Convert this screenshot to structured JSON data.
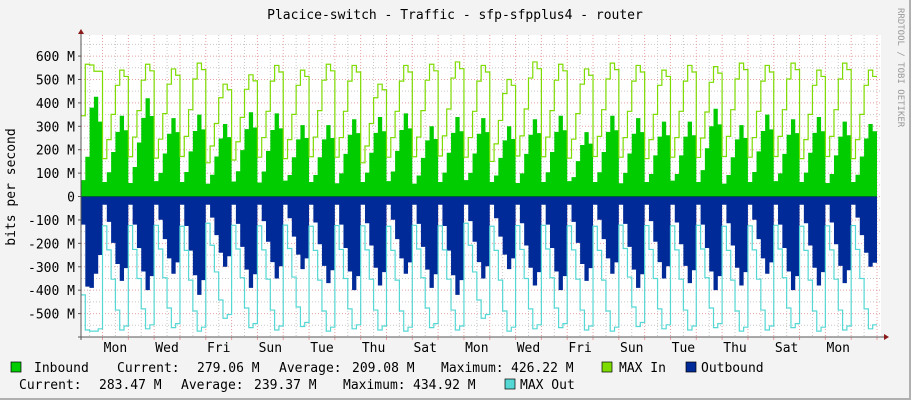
{
  "title": "Placice-switch - Traffic - sfp-sfpplus4 - router",
  "watermark": "RRDTOOL / TOBI OETIKER",
  "colors": {
    "inbound": "#00cc00",
    "max_in": "#7ddb00",
    "outbound": "#002a97",
    "max_out": "#55d8d4",
    "grid_major": "#e8a0a0",
    "grid_minor": "#c8c8c8",
    "background": "#f3f3f3",
    "plot_background": "#ffffff"
  },
  "legend": {
    "inbound": {
      "label": "Inbound",
      "current_label": "Current:",
      "current": "279.06 M",
      "average_label": "Average:",
      "average": "209.08 M",
      "maximum_label": "Maximum:",
      "maximum": "426.22 M"
    },
    "max_in": {
      "label": "MAX In"
    },
    "outbound": {
      "label": "Outbound",
      "current_label": "Current:",
      "current": "283.47 M",
      "average_label": "Average:",
      "average": "239.37 M",
      "maximum_label": "Maximum:",
      "maximum": "434.92 M"
    },
    "max_out": {
      "label": "MAX Out"
    }
  },
  "chart_data": {
    "type": "area",
    "title": "Placice-switch - Traffic - sfp-sfpplus4 - router",
    "xlabel": "",
    "ylabel": "bits per second",
    "ylim": [
      -600,
      690
    ],
    "y_unit": "M",
    "yticks": [
      -500,
      -400,
      -300,
      -200,
      -100,
      0,
      100,
      200,
      300,
      400,
      500,
      600
    ],
    "ytick_labels": [
      "-500 M",
      "-400 M",
      "-300 M",
      "-200 M",
      "-100 M",
      "0",
      "100 M",
      "200 M",
      "300 M",
      "400 M",
      "500 M",
      "600 M"
    ],
    "x_resolution": "4 hours",
    "xtick_labels": [
      "Mon",
      "Wed",
      "Fri",
      "Sun",
      "Tue",
      "Thu",
      "Sat",
      "Mon",
      "Wed",
      "Fri",
      "Sun",
      "Tue",
      "Thu",
      "Sat",
      "Mon"
    ],
    "grid": true,
    "legend_position": "bottom",
    "series": [
      {
        "name": "Inbound",
        "style": "area",
        "values": [
          70,
          170,
          380,
          426,
          320,
          62,
          104,
          190,
          276,
          345,
          283,
          58,
          126,
          231,
          336,
          420,
          344,
          66,
          101,
          184,
          268,
          335,
          275,
          62,
          105,
          193,
          280,
          350,
          287,
          55,
          93,
          171,
          248,
          310,
          254,
          64,
          108,
          198,
          288,
          360,
          295,
          60,
          107,
          195,
          284,
          355,
          291,
          68,
          92,
          168,
          244,
          305,
          250,
          62,
          92,
          168,
          244,
          305,
          250,
          57,
          99,
          182,
          264,
          330,
          271,
          62,
          102,
          187,
          272,
          340,
          279,
          66,
          107,
          195,
          284,
          355,
          291,
          55,
          90,
          165,
          240,
          300,
          246,
          62,
          102,
          187,
          272,
          340,
          279,
          70,
          101,
          184,
          268,
          335,
          275,
          62,
          90,
          165,
          240,
          300,
          246,
          58,
          99,
          182,
          264,
          330,
          271,
          62,
          104,
          190,
          276,
          345,
          283,
          66,
          83,
          151,
          220,
          275,
          226,
          62,
          104,
          190,
          276,
          345,
          283,
          57,
          101,
          184,
          268,
          335,
          275,
          62,
          96,
          176,
          256,
          320,
          262,
          68,
          96,
          176,
          256,
          320,
          262,
          62,
          113,
          206,
          300,
          375,
          308,
          55,
          92,
          168,
          244,
          305,
          250,
          62,
          105,
          193,
          280,
          350,
          287,
          66,
          99,
          182,
          264,
          330,
          271,
          62,
          102,
          187,
          272,
          340,
          279,
          58,
          96,
          176,
          256,
          320,
          262,
          62,
          93,
          171,
          248,
          310,
          279
        ]
      },
      {
        "name": "MAX In",
        "style": "line",
        "values": [
          345,
          565,
          562,
          535,
          535,
          162,
          243,
          351,
          475,
          540,
          513,
          170,
          254,
          367,
          497,
          565,
          537,
          164,
          245,
          354,
          480,
          545,
          518,
          171,
          257,
          371,
          502,
          570,
          542,
          144,
          216,
          312,
          422,
          480,
          456,
          156,
          234,
          338,
          458,
          520,
          494,
          168,
          252,
          364,
          493,
          560,
          532,
          162,
          243,
          351,
          475,
          540,
          513,
          170,
          254,
          367,
          497,
          565,
          537,
          168,
          252,
          364,
          493,
          560,
          532,
          144,
          216,
          312,
          422,
          480,
          456,
          168,
          252,
          364,
          493,
          560,
          532,
          170,
          254,
          367,
          497,
          565,
          537,
          173,
          259,
          374,
          506,
          575,
          546,
          168,
          252,
          364,
          493,
          560,
          532,
          150,
          225,
          325,
          440,
          500,
          475,
          173,
          259,
          374,
          506,
          575,
          546,
          170,
          254,
          367,
          497,
          565,
          537,
          164,
          245,
          354,
          480,
          545,
          518,
          171,
          257,
          371,
          502,
          570,
          542,
          168,
          252,
          364,
          493,
          560,
          532,
          162,
          243,
          351,
          475,
          540,
          513,
          168,
          252,
          364,
          493,
          560,
          532,
          167,
          250,
          361,
          488,
          555,
          527,
          171,
          257,
          371,
          502,
          570,
          542,
          168,
          252,
          364,
          493,
          560,
          532,
          171,
          257,
          371,
          502,
          570,
          542,
          162,
          243,
          351,
          475,
          540,
          513,
          171,
          257,
          371,
          502,
          570,
          542,
          162,
          243,
          351,
          475,
          540,
          513
        ]
      },
      {
        "name": "Outbound",
        "style": "area",
        "values": [
          -120,
          -385,
          -390,
          -330,
          -250,
          -35,
          -108,
          -198,
          -288,
          -360,
          -306,
          -35,
          -120,
          -220,
          -320,
          -400,
          -340,
          -35,
          -99,
          -182,
          -264,
          -330,
          -281,
          -35,
          -126,
          -231,
          -336,
          -420,
          -357,
          -35,
          -90,
          -165,
          -240,
          -300,
          -255,
          -35,
          -117,
          -215,
          -312,
          -390,
          -332,
          -35,
          -105,
          -193,
          -280,
          -350,
          -298,
          -35,
          -93,
          -171,
          -248,
          -310,
          -264,
          -35,
          -111,
          -204,
          -296,
          -370,
          -315,
          -35,
          -120,
          -220,
          -320,
          -400,
          -340,
          -35,
          -114,
          -209,
          -304,
          -380,
          -323,
          -35,
          -99,
          -182,
          -264,
          -330,
          -281,
          -35,
          -117,
          -215,
          -312,
          -390,
          -332,
          -35,
          -126,
          -231,
          -336,
          -420,
          -357,
          -35,
          -105,
          -193,
          -280,
          -350,
          -298,
          -35,
          -93,
          -171,
          -248,
          -310,
          -264,
          -35,
          -114,
          -209,
          -304,
          -380,
          -323,
          -35,
          -120,
          -220,
          -320,
          -400,
          -340,
          -35,
          -108,
          -198,
          -288,
          -360,
          -306,
          -35,
          -99,
          -182,
          -264,
          -330,
          -281,
          -35,
          -117,
          -215,
          -312,
          -390,
          -332,
          -35,
          -105,
          -193,
          -280,
          -350,
          -298,
          -35,
          -111,
          -204,
          -296,
          -370,
          -315,
          -35,
          -120,
          -220,
          -320,
          -400,
          -340,
          -35,
          -114,
          -209,
          -304,
          -380,
          -323,
          -35,
          -99,
          -182,
          -264,
          -330,
          -281,
          -35,
          -120,
          -220,
          -320,
          -400,
          -340,
          -35,
          -114,
          -209,
          -304,
          -380,
          -323,
          -35,
          -111,
          -204,
          -296,
          -370,
          -315,
          -35,
          -90,
          -165,
          -240,
          -300,
          -283
        ]
      },
      {
        "name": "MAX Out",
        "style": "line",
        "values": [
          -420,
          -570,
          -575,
          -575,
          -565,
          -125,
          -228,
          -353,
          -485,
          -570,
          -553,
          -124,
          -226,
          -350,
          -480,
          -565,
          -548,
          -123,
          -224,
          -347,
          -476,
          -560,
          -543,
          -127,
          -230,
          -357,
          -489,
          -575,
          -558,
          -114,
          -208,
          -322,
          -442,
          -520,
          -504,
          -123,
          -224,
          -347,
          -476,
          -560,
          -543,
          -125,
          -228,
          -353,
          -485,
          -570,
          -553,
          -122,
          -222,
          -344,
          -472,
          -555,
          -538,
          -127,
          -230,
          -357,
          -489,
          -575,
          -558,
          -124,
          -226,
          -350,
          -480,
          -565,
          -548,
          -125,
          -228,
          -353,
          -485,
          -570,
          -553,
          -127,
          -230,
          -357,
          -489,
          -575,
          -558,
          -123,
          -224,
          -347,
          -476,
          -560,
          -543,
          -125,
          -228,
          -353,
          -485,
          -570,
          -553,
          -114,
          -208,
          -322,
          -442,
          -520,
          -504,
          -127,
          -230,
          -357,
          -489,
          -575,
          -558,
          -124,
          -226,
          -350,
          -480,
          -565,
          -548,
          -123,
          -224,
          -347,
          -476,
          -560,
          -543,
          -125,
          -228,
          -353,
          -485,
          -570,
          -553,
          -127,
          -230,
          -357,
          -489,
          -575,
          -558,
          -122,
          -222,
          -344,
          -472,
          -555,
          -538,
          -124,
          -226,
          -350,
          -480,
          -565,
          -548,
          -125,
          -228,
          -353,
          -485,
          -570,
          -553,
          -123,
          -224,
          -347,
          -476,
          -560,
          -543,
          -127,
          -230,
          -357,
          -489,
          -575,
          -558,
          -125,
          -228,
          -353,
          -485,
          -570,
          -553,
          -123,
          -224,
          -347,
          -476,
          -560,
          -543,
          -127,
          -230,
          -357,
          -489,
          -575,
          -558,
          -125,
          -228,
          -353,
          -485,
          -570,
          -553,
          -124,
          -226,
          -350,
          -480,
          -565,
          -548
        ]
      }
    ]
  }
}
